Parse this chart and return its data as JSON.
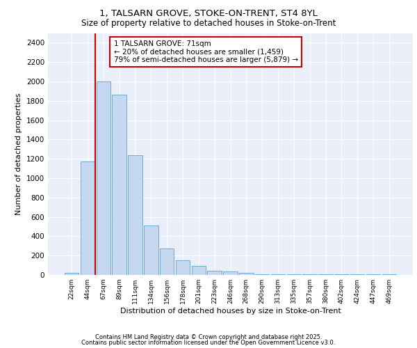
{
  "title_line1": "1, TALSARN GROVE, STOKE-ON-TRENT, ST4 8YL",
  "title_line2": "Size of property relative to detached houses in Stoke-on-Trent",
  "xlabel": "Distribution of detached houses by size in Stoke-on-Trent",
  "ylabel": "Number of detached properties",
  "categories": [
    "22sqm",
    "44sqm",
    "67sqm",
    "89sqm",
    "111sqm",
    "134sqm",
    "156sqm",
    "178sqm",
    "201sqm",
    "223sqm",
    "246sqm",
    "268sqm",
    "290sqm",
    "313sqm",
    "335sqm",
    "357sqm",
    "380sqm",
    "402sqm",
    "424sqm",
    "447sqm",
    "469sqm"
  ],
  "bar_heights": [
    25,
    1170,
    2000,
    1860,
    1240,
    510,
    270,
    150,
    90,
    45,
    38,
    18,
    5,
    5,
    5,
    5,
    5,
    5,
    5,
    5,
    5
  ],
  "annotation_text": "1 TALSARN GROVE: 71sqm\n← 20% of detached houses are smaller (1,459)\n79% of semi-detached houses are larger (5,879) →",
  "bar_color": "#c5d8f0",
  "bar_edge_color": "#6baed6",
  "vline_color": "#cc0000",
  "annotation_box_color": "#ffffff",
  "annotation_box_edge": "#cc0000",
  "background_color": "#eaeff9",
  "grid_color": "#ffffff",
  "footer_line1": "Contains HM Land Registry data © Crown copyright and database right 2025.",
  "footer_line2": "Contains public sector information licensed under the Open Government Licence v3.0.",
  "ylim": [
    0,
    2500
  ],
  "yticks": [
    0,
    200,
    400,
    600,
    800,
    1000,
    1200,
    1400,
    1600,
    1800,
    2000,
    2200,
    2400
  ]
}
